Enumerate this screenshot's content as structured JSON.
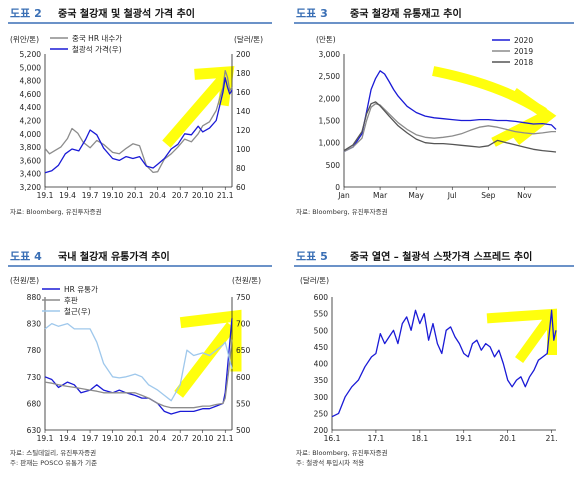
{
  "panels": [
    {
      "tag": "도표 2",
      "title": "중국 철강재 및 철광석 가격 추이",
      "unit_left": "(위안/톤)",
      "unit_right": "(달러/톤)",
      "source": [
        "자료: Bloomberg, 유진투자증권"
      ]
    },
    {
      "tag": "도표 3",
      "title": "중국 철강재 유통재고 추이",
      "unit_left": "(만톤)",
      "unit_right": "",
      "source": [
        "자료: Bloomberg, 유진투자증권"
      ]
    },
    {
      "tag": "도표 4",
      "title": "국내 철강재 유통가격 추이",
      "unit_left": "(천원/톤)",
      "unit_right": "(천원/톤)",
      "source": [
        "자료: 스틸데일리, 유진투자증권",
        "주: 판재는 POSCO 유통가 기준"
      ]
    },
    {
      "tag": "도표 5",
      "title": "중국 열연 – 철광석 스팟가격 스프레드 추이",
      "unit_left": "(달러/톤)",
      "unit_right": "",
      "source": [
        "자료: Bloomberg, 유진투자증권",
        "주: 철광석 투입시차 적용"
      ]
    }
  ],
  "colors": {
    "tag": "#3a6fb5",
    "series_gray": "#8c8c8c",
    "series_blue": "#1a1ad6",
    "series_dark": "#555555",
    "series_light": "#9fc8ec",
    "highlight": "#ffff00"
  },
  "chart_data": [
    {
      "type": "line",
      "x_ticks": [
        "19.1",
        "19.4",
        "19.7",
        "19.10",
        "20.1",
        "20.4",
        "20.7",
        "20.10",
        "21.1"
      ],
      "ylim": [
        3200,
        5200
      ],
      "y_ticks": [
        3200,
        3400,
        3600,
        3800,
        4000,
        4200,
        4400,
        4600,
        4800,
        5000,
        5200
      ],
      "y2lim": [
        60,
        200
      ],
      "y2_ticks": [
        60,
        80,
        100,
        120,
        140,
        160,
        180,
        200
      ],
      "legend": "top-left",
      "series": [
        {
          "name": "중국 HR 내수가",
          "axis": "left",
          "color": "#8c8c8c",
          "x": [
            0,
            0.2,
            0.45,
            0.7,
            1,
            1.2,
            1.45,
            1.7,
            2,
            2.3,
            2.6,
            3,
            3.3,
            3.6,
            3.9,
            4.2,
            4.5,
            4.8,
            5,
            5.3,
            5.6,
            5.9,
            6.2,
            6.5,
            6.8,
            7,
            7.3,
            7.6,
            7.9,
            8,
            8.1,
            8.2,
            8.3
          ],
          "values": [
            3780,
            3700,
            3750,
            3800,
            3930,
            4080,
            4010,
            3870,
            3790,
            3900,
            3840,
            3720,
            3700,
            3780,
            3850,
            3820,
            3520,
            3420,
            3430,
            3620,
            3700,
            3800,
            3920,
            3880,
            4000,
            4120,
            4180,
            4350,
            4700,
            4950,
            4850,
            4650,
            4700
          ]
        },
        {
          "name": "철광석 가격(우)",
          "axis": "right",
          "color": "#1a1ad6",
          "x": [
            0,
            0.3,
            0.6,
            0.9,
            1.2,
            1.5,
            1.8,
            2,
            2.3,
            2.6,
            3,
            3.3,
            3.6,
            3.9,
            4.2,
            4.5,
            4.8,
            5,
            5.3,
            5.6,
            5.9,
            6.2,
            6.5,
            6.8,
            7,
            7.3,
            7.6,
            7.9,
            8,
            8.1,
            8.2,
            8.3
          ],
          "values": [
            75,
            77,
            83,
            95,
            100,
            98,
            110,
            120,
            115,
            101,
            90,
            88,
            92,
            90,
            92,
            82,
            80,
            84,
            90,
            100,
            105,
            116,
            115,
            124,
            118,
            122,
            130,
            160,
            175,
            165,
            158,
            162
          ]
        }
      ]
    },
    {
      "type": "line",
      "x_ticks": [
        "Jan",
        "Mar",
        "May",
        "Jul",
        "Sep",
        "Nov"
      ],
      "ylim": [
        0,
        3000
      ],
      "y_ticks": [
        0,
        500,
        1000,
        1500,
        2000,
        2500,
        3000
      ],
      "legend": "top-right",
      "series": [
        {
          "name": "2020",
          "color": "#1a1ad6",
          "x": [
            0,
            2,
            4,
            5,
            6,
            7,
            8,
            9,
            10,
            11,
            12,
            14,
            16,
            18,
            20,
            22,
            24,
            26,
            28,
            30,
            32,
            34,
            36,
            38,
            40,
            42,
            44,
            46,
            47
          ],
          "values": [
            800,
            900,
            1200,
            1700,
            2200,
            2450,
            2620,
            2550,
            2380,
            2200,
            2050,
            1820,
            1680,
            1600,
            1560,
            1540,
            1520,
            1500,
            1500,
            1520,
            1520,
            1500,
            1500,
            1480,
            1450,
            1420,
            1430,
            1400,
            1300
          ]
        },
        {
          "name": "2019",
          "color": "#8c8c8c",
          "x": [
            0,
            2,
            4,
            5,
            6,
            7,
            8,
            10,
            12,
            14,
            16,
            18,
            20,
            22,
            24,
            26,
            28,
            30,
            32,
            34,
            36,
            38,
            40,
            42,
            44,
            46,
            47
          ],
          "values": [
            800,
            900,
            1100,
            1500,
            1800,
            1880,
            1850,
            1650,
            1450,
            1300,
            1180,
            1120,
            1100,
            1120,
            1150,
            1200,
            1280,
            1350,
            1380,
            1350,
            1300,
            1250,
            1220,
            1200,
            1220,
            1250,
            1250
          ]
        },
        {
          "name": "2018",
          "color": "#555555",
          "x": [
            0,
            2,
            4,
            5,
            6,
            7,
            8,
            10,
            12,
            14,
            16,
            18,
            20,
            22,
            24,
            26,
            28,
            30,
            32,
            34,
            36,
            38,
            40,
            42,
            44,
            46,
            47
          ],
          "values": [
            820,
            950,
            1250,
            1650,
            1880,
            1920,
            1830,
            1600,
            1380,
            1220,
            1080,
            1000,
            980,
            980,
            960,
            940,
            920,
            900,
            930,
            1050,
            1000,
            950,
            900,
            850,
            820,
            800,
            790
          ]
        }
      ]
    },
    {
      "type": "line",
      "x_ticks": [
        "19.1",
        "19.4",
        "19.7",
        "19.10",
        "20.1",
        "20.4",
        "20.7",
        "20.10",
        "21.1"
      ],
      "ylim": [
        630,
        880
      ],
      "y_ticks": [
        630,
        680,
        730,
        780,
        830,
        880
      ],
      "y2lim": [
        500,
        750
      ],
      "y2_ticks": [
        500,
        550,
        600,
        650,
        700,
        750
      ],
      "legend": "top-left",
      "series": [
        {
          "name": "HR 유통가",
          "axis": "left",
          "color": "#1a1ad6",
          "x": [
            0,
            0.3,
            0.6,
            1,
            1.3,
            1.6,
            2,
            2.3,
            2.6,
            3,
            3.3,
            3.6,
            4,
            4.3,
            4.6,
            5,
            5.3,
            5.6,
            6,
            6.3,
            6.6,
            7,
            7.3,
            7.6,
            7.9,
            8,
            8.15,
            8.3
          ],
          "values": [
            730,
            725,
            710,
            720,
            715,
            700,
            705,
            715,
            705,
            700,
            705,
            700,
            695,
            690,
            690,
            680,
            665,
            660,
            665,
            665,
            665,
            670,
            670,
            675,
            680,
            700,
            770,
            840
          ]
        },
        {
          "name": "후판",
          "axis": "left",
          "color": "#8c8c8c",
          "x": [
            0,
            0.3,
            0.6,
            1,
            1.3,
            1.6,
            2,
            2.3,
            2.6,
            3,
            3.3,
            3.6,
            4,
            4.3,
            4.6,
            5,
            5.3,
            5.6,
            6,
            6.3,
            6.6,
            7,
            7.3,
            7.6,
            7.9,
            8,
            8.15,
            8.3
          ],
          "values": [
            720,
            718,
            715,
            712,
            710,
            708,
            705,
            703,
            700,
            700,
            700,
            700,
            700,
            695,
            690,
            680,
            675,
            672,
            672,
            672,
            672,
            675,
            675,
            678,
            680,
            690,
            740,
            800
          ]
        },
        {
          "name": "철근(우)",
          "axis": "right",
          "color": "#9fc8ec",
          "x": [
            0,
            0.3,
            0.6,
            1,
            1.3,
            1.6,
            2,
            2.3,
            2.6,
            3,
            3.3,
            3.6,
            4,
            4.3,
            4.6,
            5,
            5.3,
            5.6,
            6,
            6.3,
            6.6,
            7,
            7.3,
            7.6,
            7.9,
            8,
            8.15,
            8.3
          ],
          "values": [
            690,
            700,
            695,
            700,
            690,
            690,
            690,
            665,
            625,
            600,
            598,
            600,
            605,
            600,
            585,
            575,
            565,
            555,
            585,
            650,
            640,
            645,
            640,
            650,
            660,
            665,
            640,
            615
          ]
        }
      ]
    },
    {
      "type": "line",
      "x_ticks": [
        "16.1",
        "17.1",
        "18.1",
        "19.1",
        "20.1",
        "21."
      ],
      "ylim": [
        200,
        600
      ],
      "y_ticks": [
        200,
        250,
        300,
        350,
        400,
        450,
        500,
        550,
        600
      ],
      "series": [
        {
          "color": "#1a1ad6",
          "x": [
            0,
            0.15,
            0.3,
            0.45,
            0.6,
            0.75,
            0.9,
            1,
            1.1,
            1.2,
            1.3,
            1.4,
            1.5,
            1.6,
            1.7,
            1.8,
            1.9,
            2,
            2.1,
            2.2,
            2.3,
            2.4,
            2.5,
            2.6,
            2.7,
            2.8,
            2.9,
            3,
            3.1,
            3.2,
            3.3,
            3.4,
            3.5,
            3.6,
            3.7,
            3.8,
            3.9,
            4,
            4.1,
            4.2,
            4.3,
            4.4,
            4.5,
            4.6,
            4.7,
            4.8,
            4.9,
            5,
            5.05,
            5.1
          ],
          "values": [
            240,
            250,
            300,
            330,
            350,
            390,
            420,
            430,
            490,
            460,
            480,
            500,
            460,
            520,
            540,
            500,
            560,
            520,
            550,
            470,
            520,
            460,
            430,
            500,
            510,
            480,
            460,
            430,
            420,
            460,
            470,
            440,
            460,
            450,
            420,
            440,
            400,
            350,
            330,
            350,
            360,
            330,
            360,
            380,
            410,
            420,
            430,
            560,
            470,
            500
          ]
        }
      ]
    }
  ]
}
